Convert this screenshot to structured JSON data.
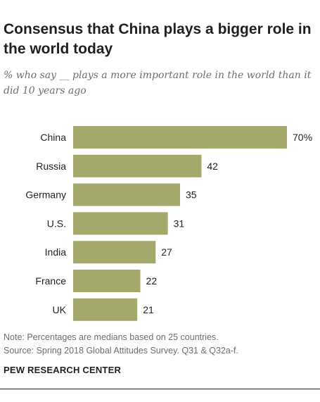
{
  "title": "Consensus that China plays a bigger role in the world today",
  "subtitle": "% who say __ plays a more important role in the world than it did 10 years ago",
  "chart_data": {
    "type": "bar",
    "orientation": "horizontal",
    "categories": [
      "China",
      "Russia",
      "Germany",
      "U.S.",
      "India",
      "France",
      "UK"
    ],
    "values": [
      70,
      42,
      35,
      31,
      27,
      22,
      21
    ],
    "value_labels": [
      "70%",
      "42",
      "35",
      "31",
      "27",
      "22",
      "21"
    ],
    "xlim": [
      0,
      70
    ],
    "bar_color": "#a4a86a",
    "grid": false,
    "legend": "none"
  },
  "notes": {
    "note": "Note: Percentages are medians based on 25 countries.",
    "source": "Source: Spring 2018 Global Attitudes Survey. Q31 & Q32a-f."
  },
  "brand": "PEW RESEARCH CENTER"
}
